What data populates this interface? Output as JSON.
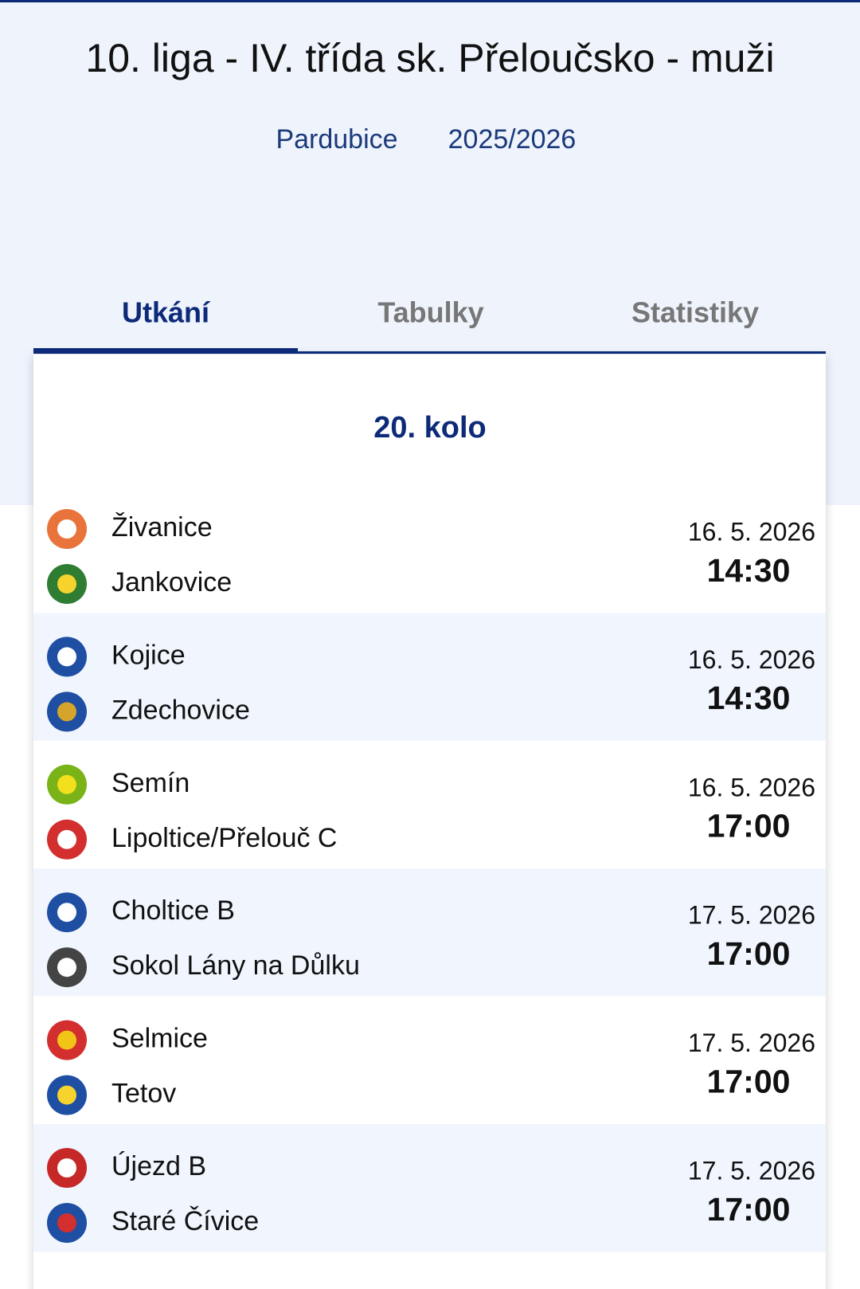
{
  "header": {
    "title": "10. liga - IV. třída sk. Přeloučsko - muži",
    "region": "Pardubice",
    "season": "2025/2026"
  },
  "tabs": [
    "Utkání",
    "Tabulky",
    "Statistiky"
  ],
  "round": "20. kolo",
  "matches": [
    {
      "home": "Živanice",
      "away": "Jankovice",
      "date": "16. 5. 2026",
      "time": "14:30"
    },
    {
      "home": "Kojice",
      "away": "Zdechovice",
      "date": "16. 5. 2026",
      "time": "14:30"
    },
    {
      "home": "Semín",
      "away": "Lipoltice/Přelouč C",
      "date": "16. 5. 2026",
      "time": "17:00"
    },
    {
      "home": "Choltice B",
      "away": "Sokol Lány na Důlku",
      "date": "17. 5. 2026",
      "time": "17:00"
    },
    {
      "home": "Selmice",
      "away": "Tetov",
      "date": "17. 5. 2026",
      "time": "17:00"
    },
    {
      "home": "Újezd B",
      "away": "Staré Čívice",
      "date": "17. 5. 2026",
      "time": "17:00"
    }
  ]
}
